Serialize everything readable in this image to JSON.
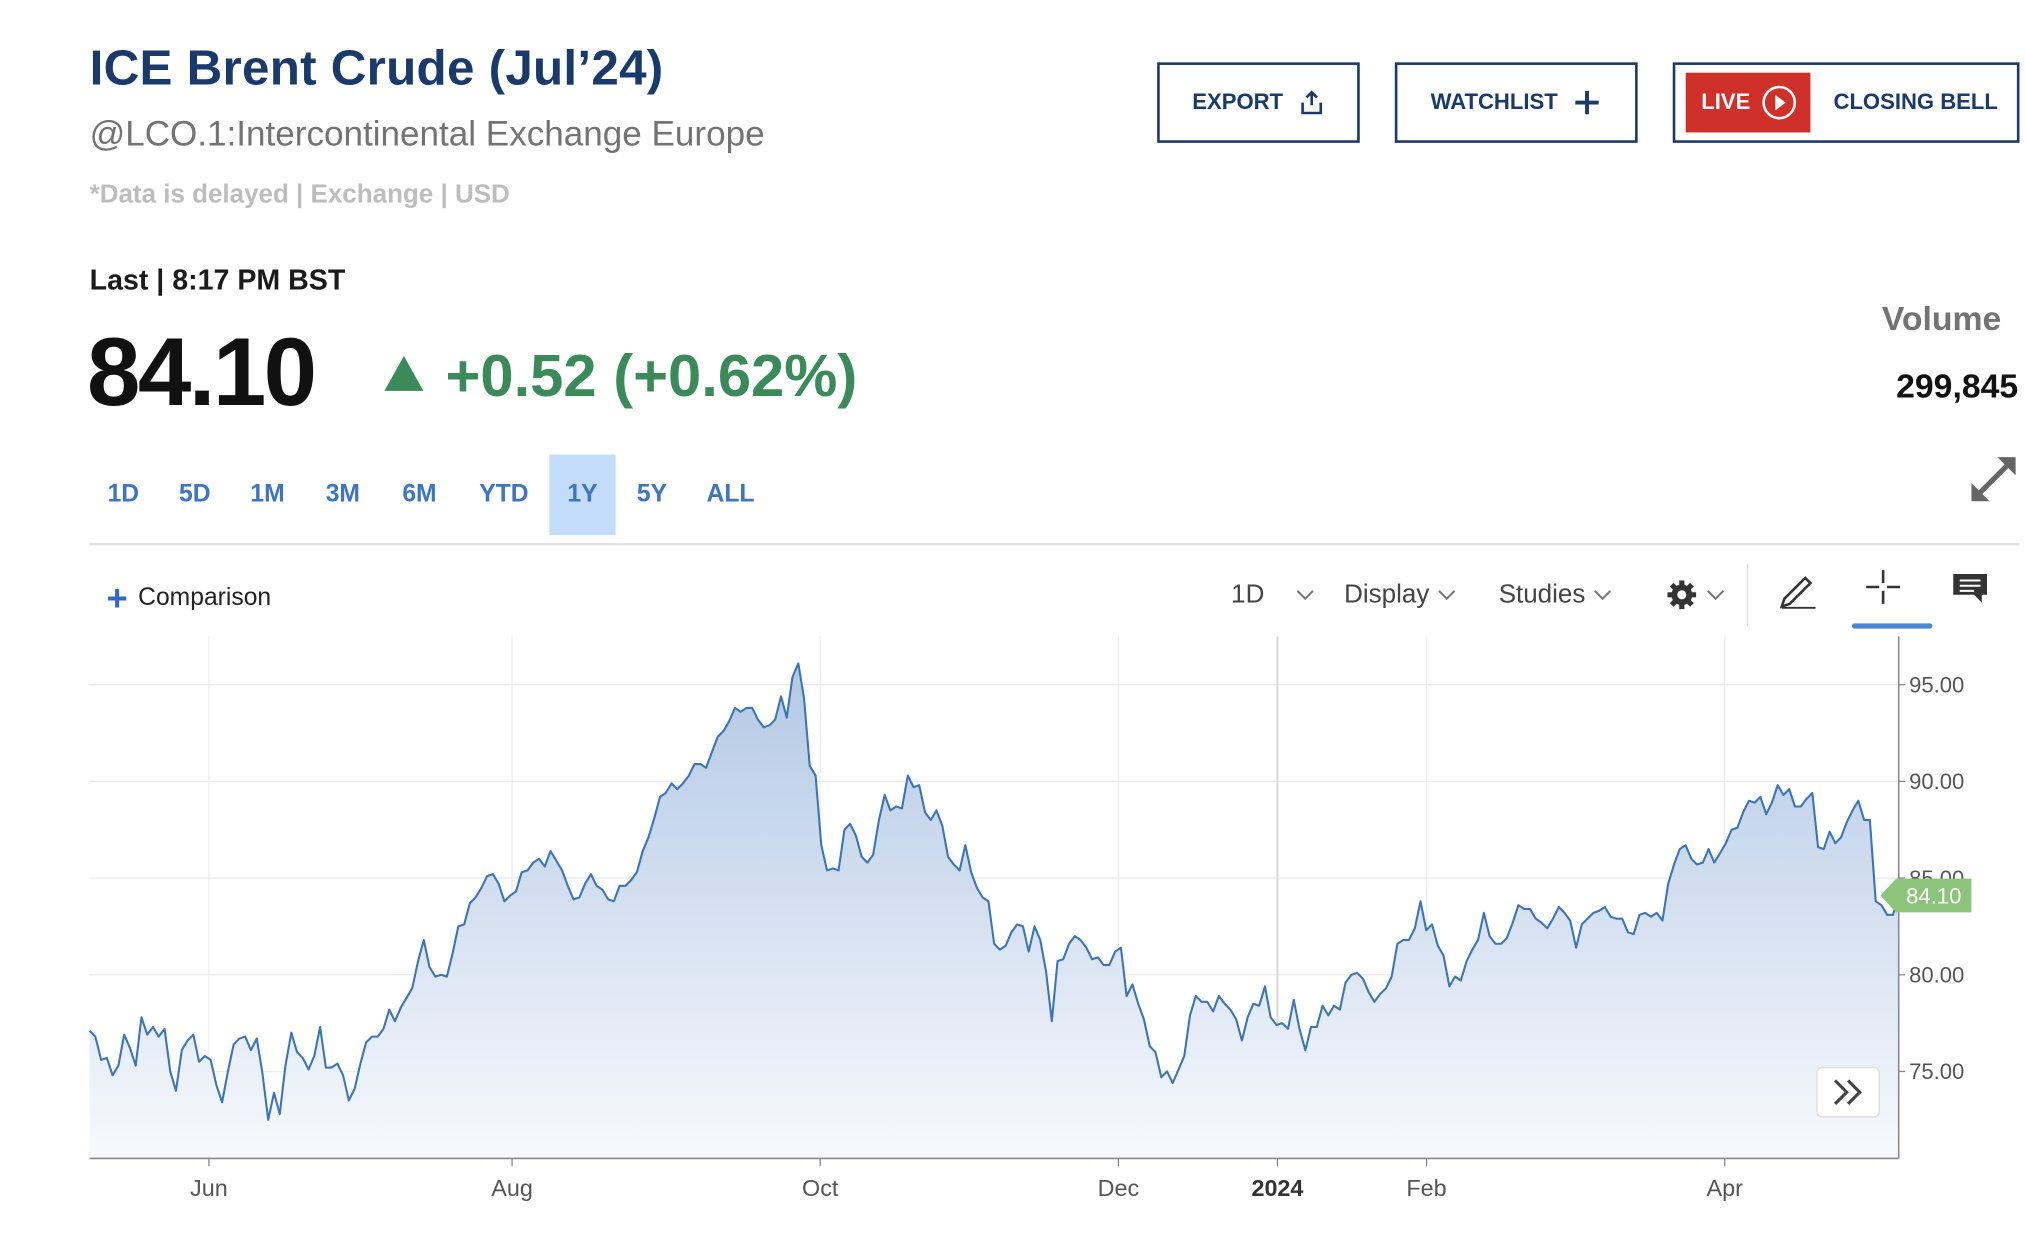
{
  "header": {
    "title": "ICE Brent Crude (Jul’24)",
    "subtitle": "@LCO.1:Intercontinental Exchange Europe",
    "delayed_note": "*Data is delayed | Exchange | USD",
    "export_label": "EXPORT",
    "watchlist_label": "WATCHLIST",
    "live_label": "LIVE",
    "closing_bell_label": "CLOSING BELL"
  },
  "quote": {
    "last_time": "Last | 8:17 PM BST",
    "price": "84.10",
    "change": "+0.52 (+0.62%)",
    "direction": "up",
    "up_color": "#3b8a5a",
    "volume_label": "Volume",
    "volume_value": "299,845"
  },
  "ranges": [
    {
      "label": "1D"
    },
    {
      "label": "5D"
    },
    {
      "label": "1M"
    },
    {
      "label": "3M"
    },
    {
      "label": "6M"
    },
    {
      "label": "YTD"
    },
    {
      "label": "1Y",
      "active": true
    },
    {
      "label": "5Y"
    },
    {
      "label": "ALL"
    }
  ],
  "toolbar": {
    "comparison_label": "Comparison",
    "interval_label": "1D",
    "display_label": "Display",
    "studies_label": "Studies",
    "icons": [
      "settings-gear-icon",
      "draw-pencil-icon",
      "crosshair-icon",
      "comment-icon",
      "expand-icon",
      "scroll-forward-icon"
    ]
  },
  "chart_data": {
    "type": "area",
    "series": [
      {
        "y": [
          77.1,
          76.8,
          75.6,
          75.7,
          74.8,
          75.3,
          76.9,
          76.2,
          75.3,
          77.8,
          76.9,
          77.3,
          76.8,
          77.2,
          75.0,
          74.0,
          76.1,
          76.6,
          76.9,
          75.5,
          75.8,
          75.6,
          74.3,
          73.4,
          75.0,
          76.4,
          76.7,
          76.8,
          76.1,
          76.7,
          74.9,
          72.5,
          73.9,
          72.8,
          75.3,
          77.0,
          76.0,
          75.7,
          75.1,
          75.8,
          77.3,
          75.2,
          75.2,
          75.4,
          74.8,
          73.5,
          74.1,
          75.4,
          76.5,
          76.8,
          76.8,
          77.2,
          78.2,
          77.6,
          78.3,
          78.8,
          79.3,
          80.7,
          81.8,
          80.4,
          79.9,
          80.0,
          79.9,
          81.1,
          82.5,
          82.6,
          83.7,
          84.0,
          84.5,
          85.1,
          85.2,
          84.7,
          83.8,
          84.1,
          84.3,
          85.3,
          85.4,
          85.8,
          86.0,
          85.6,
          86.4,
          85.9,
          85.4,
          84.6,
          83.9,
          84.0,
          84.7,
          85.2,
          84.6,
          84.4,
          83.9,
          83.8,
          84.6,
          84.6,
          84.9,
          85.3,
          86.4,
          87.1,
          88.1,
          89.2,
          89.4,
          89.9,
          89.6,
          89.9,
          90.3,
          90.9,
          90.9,
          90.7,
          91.5,
          92.3,
          92.6,
          93.1,
          93.8,
          93.6,
          93.8,
          93.8,
          93.2,
          92.8,
          92.9,
          93.2,
          94.4,
          93.3,
          95.4,
          96.1,
          94.3,
          90.8,
          90.3,
          86.7,
          85.4,
          85.5,
          85.4,
          87.5,
          87.8,
          87.2,
          86.1,
          85.8,
          86.2,
          88.0,
          89.3,
          88.5,
          88.7,
          88.6,
          90.3,
          89.7,
          89.8,
          88.4,
          88.0,
          88.5,
          87.7,
          86.1,
          85.7,
          85.4,
          86.7,
          85.3,
          84.5,
          84.0,
          83.8,
          81.6,
          81.3,
          81.5,
          82.2,
          82.6,
          82.5,
          81.2,
          82.5,
          81.8,
          80.2,
          77.6,
          80.7,
          80.8,
          81.6,
          82.0,
          81.8,
          81.4,
          80.8,
          80.9,
          80.5,
          80.5,
          81.2,
          81.4,
          78.9,
          79.5,
          78.5,
          77.7,
          76.3,
          76.0,
          74.7,
          75.0,
          74.4,
          75.1,
          75.8,
          77.9,
          78.9,
          78.6,
          78.6,
          78.1,
          78.9,
          78.5,
          78.2,
          77.7,
          76.6,
          77.8,
          78.5,
          78.4,
          79.4,
          77.8,
          77.4,
          77.5,
          77.2,
          78.7,
          77.2,
          76.1,
          77.3,
          77.3,
          78.4,
          77.9,
          78.4,
          78.2,
          79.6,
          80.0,
          80.1,
          79.8,
          79.1,
          78.6,
          79.0,
          79.3,
          79.9,
          81.6,
          81.8,
          81.8,
          82.4,
          83.8,
          82.3,
          82.6,
          81.5,
          81.0,
          79.4,
          79.9,
          79.7,
          80.7,
          81.3,
          81.8,
          83.2,
          82.0,
          81.6,
          81.6,
          81.9,
          82.7,
          83.6,
          83.4,
          83.4,
          82.9,
          82.7,
          82.4,
          82.9,
          83.5,
          83.2,
          82.8,
          81.4,
          82.6,
          82.9,
          83.2,
          83.3,
          83.5,
          83.0,
          82.9,
          82.9,
          82.2,
          82.1,
          83.1,
          83.2,
          83.0,
          83.2,
          82.8,
          84.7,
          85.7,
          86.5,
          86.7,
          86.0,
          85.7,
          85.8,
          86.5,
          85.8,
          86.3,
          86.8,
          87.5,
          87.6,
          88.4,
          89.0,
          88.9,
          89.2,
          88.3,
          88.9,
          89.8,
          89.3,
          89.6,
          88.7,
          88.7,
          89.1,
          89.4,
          86.6,
          86.5,
          87.4,
          86.8,
          87.1,
          87.9,
          88.5,
          89.0,
          88.0,
          88.0,
          83.8,
          83.6,
          83.1,
          83.1,
          84.1
        ],
        "range_start": "2023-05-08",
        "range_end": "2024-05-06"
      }
    ],
    "last_value": "84.10",
    "ylim": [
      70.5,
      97.5
    ],
    "y_ticks": [
      "75.00",
      "80.00",
      "85.00",
      "90.00",
      "95.00"
    ],
    "x_ticks": [
      {
        "label": "Jun",
        "date": "2023-06-01"
      },
      {
        "label": "Aug",
        "date": "2023-08-01"
      },
      {
        "label": "Oct",
        "date": "2023-10-02"
      },
      {
        "label": "Dec",
        "date": "2023-12-01"
      },
      {
        "label": "2024",
        "date": "2024-01-02",
        "bold": true
      },
      {
        "label": "Feb",
        "date": "2024-02-01"
      },
      {
        "label": "Apr",
        "date": "2024-04-01"
      }
    ],
    "line_color": "#3b74b8",
    "fill_top_color": "#b3c8e4",
    "fill_bottom_color": "#f7f9fd",
    "last_badge_color": "#8cc47c",
    "grid": true
  }
}
